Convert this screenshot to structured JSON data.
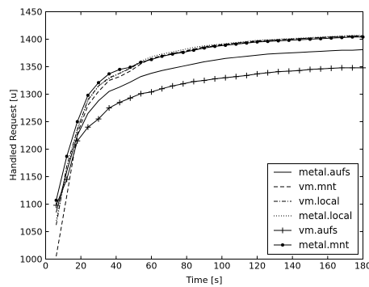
{
  "chart_data": {
    "type": "line",
    "title": "",
    "xlabel": "Time [s]",
    "ylabel": "Handled Request [u]",
    "xlim": [
      0,
      180
    ],
    "ylim": [
      1000,
      1450
    ],
    "xticks": [
      0,
      20,
      40,
      60,
      80,
      100,
      120,
      140,
      160,
      180
    ],
    "yticks": [
      1000,
      1050,
      1100,
      1150,
      1200,
      1250,
      1300,
      1350,
      1400,
      1450
    ],
    "xtick_labels": [
      "0",
      "20",
      "40",
      "60",
      "80",
      "100",
      "120",
      "140",
      "160",
      "180"
    ],
    "ytick_labels": [
      "1000",
      "1050",
      "1100",
      "1150",
      "1200",
      "1250",
      "1300",
      "1350",
      "1400",
      "1450"
    ],
    "grid": false,
    "legend_position": "lower-right",
    "series": [
      {
        "name": "metal.aufs",
        "style": "solid",
        "marker": "none",
        "x": [
          6,
          12,
          18,
          24,
          30,
          36,
          42,
          48,
          54,
          60,
          66,
          72,
          78,
          84,
          90,
          96,
          102,
          108,
          114,
          120,
          126,
          132,
          138,
          144,
          150,
          156,
          162,
          168,
          174,
          180
        ],
        "y": [
          1085,
          1160,
          1225,
          1265,
          1288,
          1305,
          1313,
          1322,
          1332,
          1338,
          1343,
          1347,
          1351,
          1355,
          1359,
          1362,
          1365,
          1367,
          1369,
          1371,
          1373,
          1374,
          1375,
          1376,
          1377,
          1378,
          1379,
          1380,
          1380,
          1381
        ]
      },
      {
        "name": "vm.mnt",
        "style": "dashed",
        "marker": "none",
        "x": [
          6,
          12,
          18,
          24,
          30,
          36,
          42,
          48,
          54,
          60,
          66,
          72,
          78,
          84,
          90,
          96,
          102,
          108,
          114,
          120,
          126,
          132,
          138,
          144,
          150,
          156,
          162,
          168,
          174,
          180
        ],
        "y": [
          1005,
          1115,
          1228,
          1280,
          1305,
          1325,
          1332,
          1342,
          1355,
          1365,
          1370,
          1374,
          1378,
          1382,
          1386,
          1389,
          1391,
          1393,
          1395,
          1397,
          1398,
          1399,
          1400,
          1401,
          1402,
          1403,
          1404,
          1404,
          1405,
          1405
        ]
      },
      {
        "name": "vm.local",
        "style": "dashdot",
        "marker": "none",
        "x": [
          6,
          12,
          18,
          24,
          30,
          36,
          42,
          48,
          54,
          60,
          66,
          72,
          78,
          84,
          90,
          96,
          102,
          108,
          114,
          120,
          126,
          132,
          138,
          144,
          150,
          156,
          162,
          168,
          174,
          180
        ],
        "y": [
          1062,
          1170,
          1235,
          1290,
          1315,
          1330,
          1338,
          1347,
          1358,
          1364,
          1369,
          1373,
          1377,
          1381,
          1385,
          1388,
          1390,
          1392,
          1394,
          1396,
          1397,
          1399,
          1400,
          1401,
          1402,
          1403,
          1404,
          1405,
          1406,
          1406
        ]
      },
      {
        "name": "metal.local",
        "style": "dotted",
        "marker": "none",
        "x": [
          6,
          12,
          18,
          24,
          30,
          36,
          42,
          48,
          54,
          60,
          66,
          72,
          78,
          84,
          90,
          96,
          102,
          108,
          114,
          120,
          126,
          132,
          138,
          144,
          150,
          156,
          162,
          168,
          174,
          180
        ],
        "y": [
          1070,
          1160,
          1238,
          1288,
          1315,
          1328,
          1338,
          1348,
          1360,
          1368,
          1373,
          1377,
          1381,
          1385,
          1388,
          1390,
          1392,
          1394,
          1396,
          1398,
          1399,
          1400,
          1401,
          1402,
          1403,
          1404,
          1405,
          1406,
          1407,
          1407
        ]
      },
      {
        "name": "vm.aufs",
        "style": "solid",
        "marker": "plus",
        "x": [
          6,
          12,
          18,
          24,
          30,
          36,
          42,
          48,
          54,
          60,
          66,
          72,
          78,
          84,
          90,
          96,
          102,
          108,
          114,
          120,
          126,
          132,
          138,
          144,
          150,
          156,
          162,
          168,
          174,
          180
        ],
        "y": [
          1098,
          1145,
          1215,
          1240,
          1255,
          1275,
          1285,
          1293,
          1301,
          1304,
          1310,
          1315,
          1319,
          1323,
          1325,
          1328,
          1330,
          1332,
          1334,
          1337,
          1339,
          1341,
          1342,
          1343,
          1345,
          1346,
          1347,
          1348,
          1348,
          1348
        ]
      },
      {
        "name": "metal.mnt",
        "style": "solid",
        "marker": "dot",
        "x": [
          6,
          12,
          18,
          24,
          30,
          36,
          42,
          48,
          54,
          60,
          66,
          72,
          78,
          84,
          90,
          96,
          102,
          108,
          114,
          120,
          126,
          132,
          138,
          144,
          150,
          156,
          162,
          168,
          174,
          180
        ],
        "y": [
          1107,
          1187,
          1250,
          1298,
          1321,
          1337,
          1345,
          1349,
          1358,
          1363,
          1369,
          1373,
          1376,
          1380,
          1384,
          1387,
          1389,
          1391,
          1393,
          1395,
          1396,
          1397,
          1398,
          1399,
          1400,
          1401,
          1402,
          1403,
          1404,
          1404
        ]
      }
    ]
  }
}
